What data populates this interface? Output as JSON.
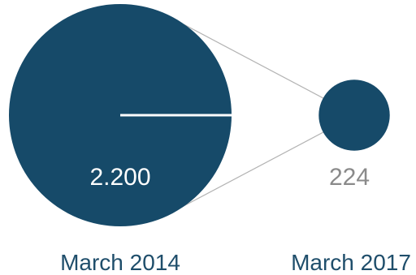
{
  "chart_data": {
    "type": "bubble",
    "categories": [
      "March 2014",
      "March 2017"
    ],
    "values": [
      2200,
      224
    ],
    "value_labels": [
      "2.200",
      "224"
    ]
  },
  "colors": {
    "bubble": "#164a69",
    "connector": "#b3b3b3",
    "radius_line": "#ffffff",
    "label_inside": "#ffffff",
    "label_outside": "#8a8a8a",
    "category_text": "#1f4e6b"
  }
}
